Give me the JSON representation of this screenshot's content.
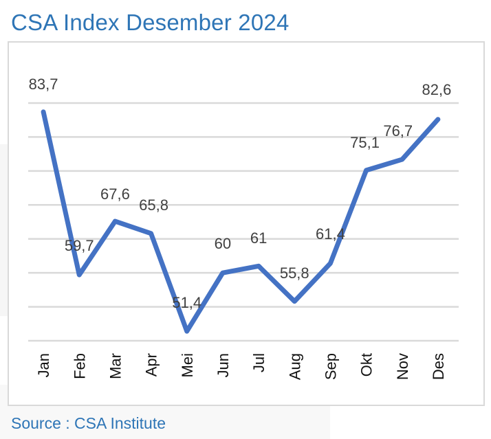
{
  "title": "CSA Index Desember 2024",
  "source": "Source : CSA Institute",
  "chart_data": {
    "type": "line",
    "title": "CSA Index Desember 2024",
    "categories": [
      "Jan",
      "Feb",
      "Mar",
      "Apr",
      "Mei",
      "Jun",
      "Jul",
      "Aug",
      "Sep",
      "Okt",
      "Nov",
      "Des"
    ],
    "values": [
      83.7,
      59.7,
      67.6,
      65.8,
      51.4,
      60,
      61,
      55.8,
      61.4,
      75.1,
      76.7,
      82.6
    ],
    "data_labels": [
      "83,7",
      "59,7",
      "67,6",
      "65,8",
      "51,4",
      "60",
      "61",
      "55,8",
      "61,4",
      "75,1",
      "76,7",
      "82,6"
    ],
    "ylim": [
      50,
      85
    ],
    "ytick_step": 5,
    "grid": true,
    "y_axis_labels_shown": false,
    "line_color": "#4472c4",
    "title_color": "#2e75b6"
  }
}
